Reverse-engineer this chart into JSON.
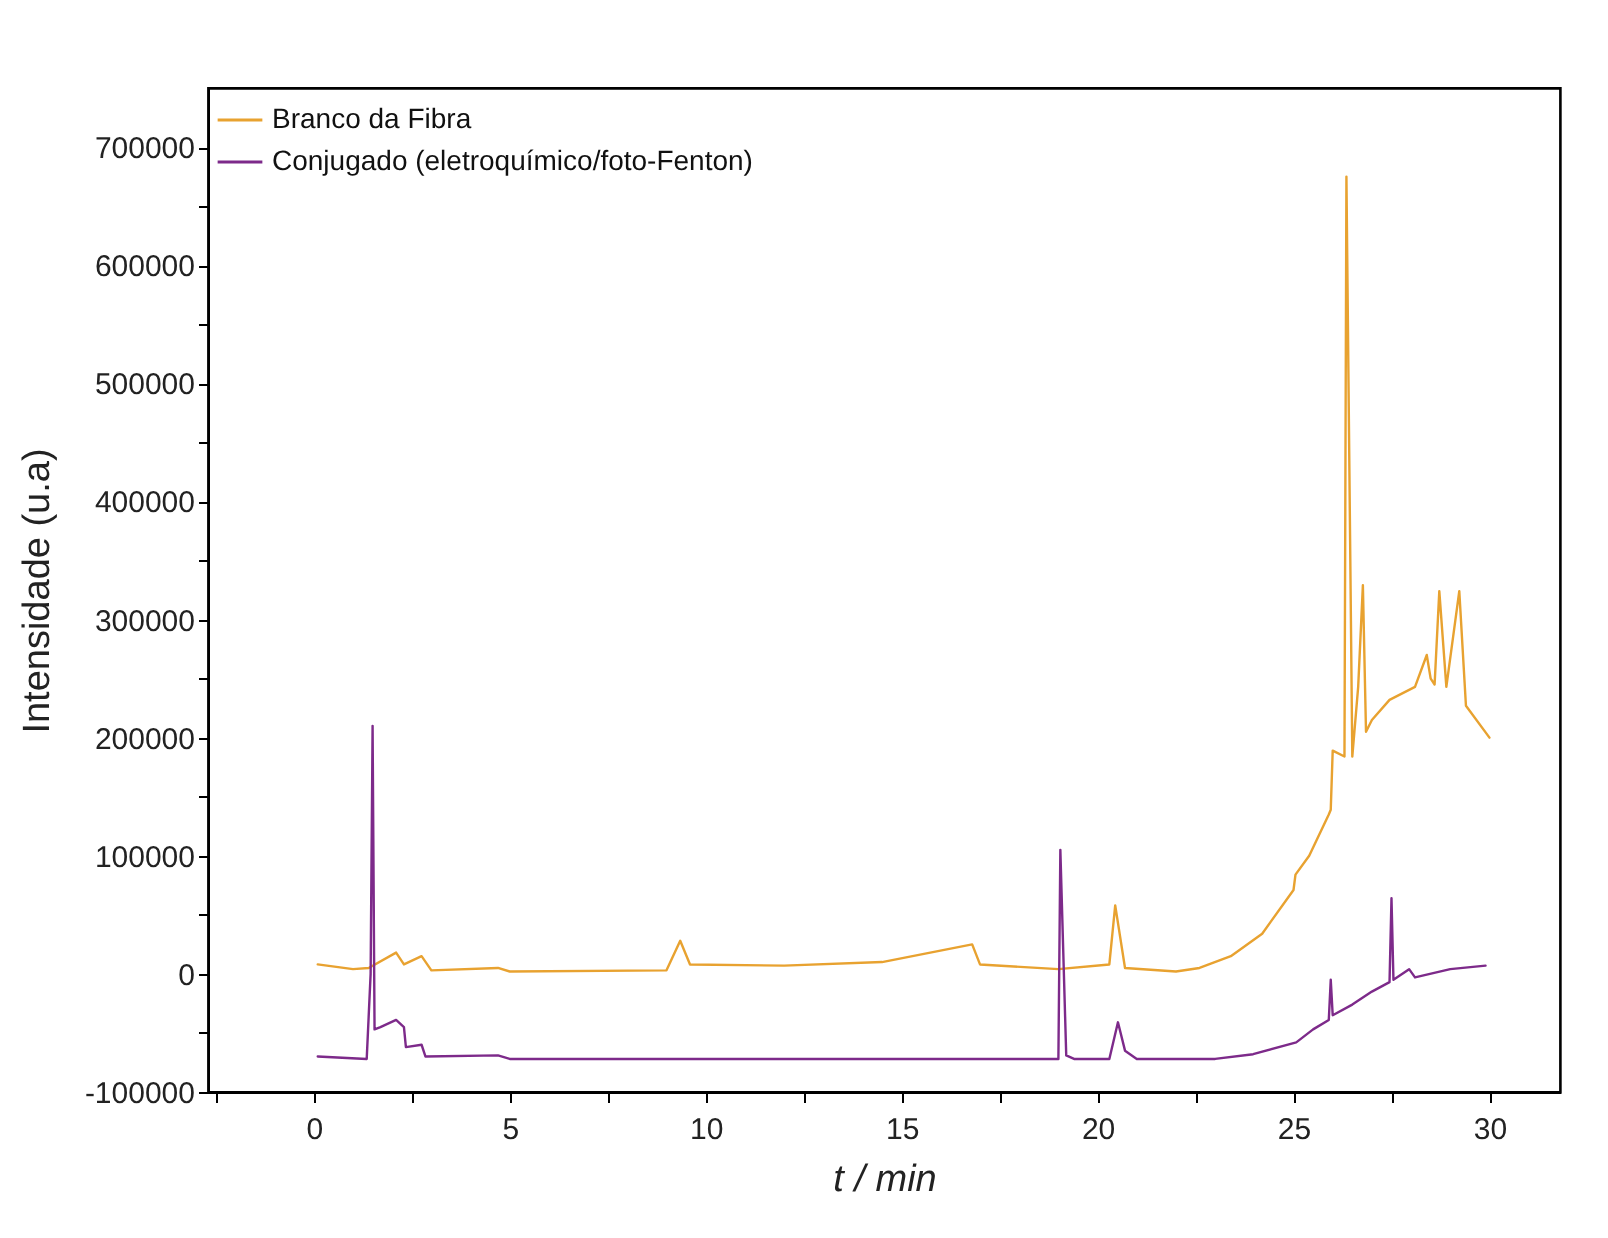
{
  "chart_data": {
    "type": "line",
    "xlabel": "t / min",
    "ylabel": "Intensidade (u.a)",
    "xlim": [
      -2.7,
      31.8
    ],
    "ylim": [
      -100000,
      750000
    ],
    "xticks": [
      {
        "value": -2.5,
        "label": null
      },
      0,
      {
        "value": 2.5,
        "label": null
      },
      5,
      {
        "value": 7.5,
        "label": null
      },
      10,
      {
        "value": 12.5,
        "label": null
      },
      15,
      {
        "value": 17.5,
        "label": null
      },
      20,
      {
        "value": 22.5,
        "label": null
      },
      25,
      {
        "value": 27.5,
        "label": null
      },
      30
    ],
    "yticks": [
      -100000,
      {
        "value": -50000,
        "label": null
      },
      0,
      {
        "value": 50000,
        "label": null
      },
      100000,
      {
        "value": 150000,
        "label": null
      },
      200000,
      {
        "value": 250000,
        "label": null
      },
      300000,
      {
        "value": 350000,
        "label": null
      },
      400000,
      {
        "value": 450000,
        "label": null
      },
      500000,
      {
        "value": 550000,
        "label": null
      },
      600000,
      {
        "value": 650000,
        "label": null
      },
      700000
    ],
    "grid": false,
    "legend": "top left",
    "line_style": "solid",
    "marker": "none",
    "series": [
      {
        "name": "Branco da Fibra",
        "color": "#e8a230",
        "x": [
          0.1,
          1.0,
          1.4,
          2.1,
          2.3,
          2.75,
          3.0,
          4.7,
          5.0,
          9.0,
          9.35,
          9.6,
          12,
          14.5,
          16.8,
          17.0,
          19.0,
          20.3,
          20.45,
          20.7,
          22,
          22.6,
          23.4,
          24.2,
          25.0,
          25.05,
          25.4,
          25.9,
          25.95,
          26.0,
          26.3,
          26.35,
          26.5,
          26.65,
          26.77,
          26.85,
          27.0,
          27.45,
          28.1,
          28.4,
          28.5,
          28.6,
          28.72,
          28.9,
          29.23,
          29.4,
          30.0
        ],
        "values": [
          8000,
          4000,
          5000,
          18000,
          8000,
          15000,
          3000,
          5000,
          2000,
          3000,
          28000,
          8000,
          7000,
          10000,
          25000,
          8000,
          4000,
          8000,
          58000,
          5000,
          2000,
          5000,
          15000,
          34000,
          71000,
          84000,
          100000,
          135000,
          139000,
          189000,
          184000,
          675000,
          184000,
          243000,
          329000,
          205000,
          215000,
          232000,
          243000,
          270000,
          250000,
          245000,
          324000,
          243000,
          324000,
          227000,
          200000
        ]
      },
      {
        "name": "Conjugado (eletroquímico/foto-Fenton)",
        "color": "#7d2a8a",
        "x": [
          0.1,
          1.35,
          1.45,
          1.5,
          1.55,
          1.7,
          2.1,
          2.3,
          2.35,
          2.75,
          2.85,
          4.7,
          5.0,
          15,
          19.0,
          19.05,
          19.2,
          19.4,
          20.3,
          20.52,
          20.7,
          21,
          23,
          23.97,
          25.07,
          25.5,
          25.9,
          25.95,
          26.0,
          26.5,
          27.0,
          27.45,
          27.5,
          27.55,
          27.95,
          28.1,
          29,
          29.9
        ],
        "values": [
          -70000,
          -72000,
          0,
          210000,
          -47000,
          -45000,
          -39000,
          -45000,
          -62000,
          -60000,
          -70000,
          -69000,
          -72000,
          -72000,
          -72000,
          105000,
          -69000,
          -72000,
          -72000,
          -41000,
          -65000,
          -72000,
          -72000,
          -68000,
          -58000,
          -47000,
          -39000,
          -5000,
          -35000,
          -26000,
          -15000,
          -7000,
          64000,
          -5000,
          4000,
          -3000,
          4000,
          7000
        ]
      }
    ]
  }
}
